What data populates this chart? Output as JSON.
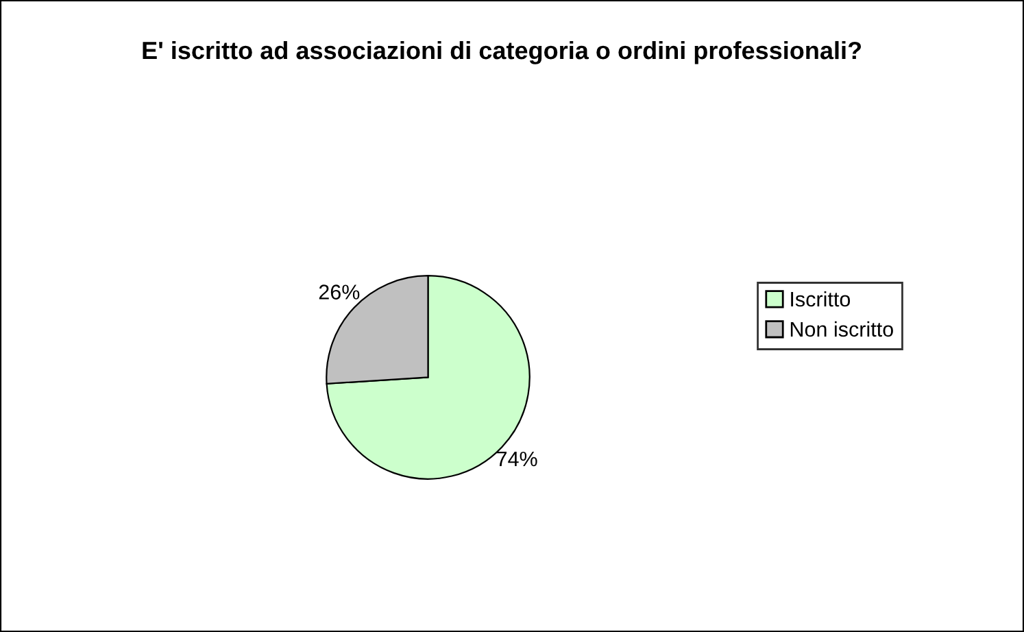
{
  "chart_data": {
    "type": "pie",
    "title": "E' iscritto ad associazioni di categoria o ordini professionali?",
    "categories": [
      "Iscritto",
      "Non iscritto"
    ],
    "values": [
      74,
      26
    ],
    "colors": [
      "#ccffcc",
      "#c0c0c0"
    ],
    "value_labels": [
      "74%",
      "26%"
    ],
    "legend": "right"
  }
}
